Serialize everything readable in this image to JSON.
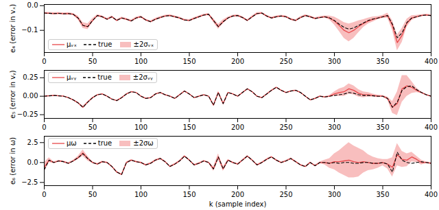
{
  "chart_data": [
    {
      "type": "line",
      "y_label": "e₄ (error in vₓ)",
      "legend": "lower left",
      "xlim": [
        0,
        400
      ],
      "xticks": [
        0,
        50,
        100,
        150,
        200,
        250,
        300,
        350,
        400
      ],
      "ylim": [
        -0.19,
        0.005
      ],
      "yticks": [
        {
          "value": 0,
          "label": "0.0"
        },
        {
          "value": -0.1,
          "label": "−0.1"
        }
      ],
      "x": [
        0,
        5,
        10,
        15,
        20,
        25,
        30,
        35,
        40,
        45,
        50,
        55,
        60,
        65,
        70,
        75,
        80,
        85,
        90,
        95,
        100,
        105,
        110,
        115,
        120,
        125,
        130,
        135,
        140,
        145,
        150,
        155,
        160,
        165,
        170,
        175,
        180,
        185,
        190,
        195,
        200,
        205,
        210,
        215,
        220,
        225,
        230,
        235,
        240,
        245,
        250,
        255,
        260,
        265,
        270,
        275,
        280,
        285,
        290,
        295,
        300,
        305,
        310,
        315,
        320,
        325,
        330,
        335,
        340,
        345,
        350,
        355,
        360,
        365,
        370,
        375,
        380,
        385,
        390,
        395,
        400
      ],
      "series": [
        {
          "name": "μᵥₓ",
          "color": "#e8474a",
          "line_style": "solid",
          "values": [
            -0.03,
            -0.031,
            -0.032,
            -0.031,
            -0.033,
            -0.032,
            -0.035,
            -0.05,
            -0.08,
            -0.085,
            -0.06,
            -0.04,
            -0.045,
            -0.055,
            -0.045,
            -0.06,
            -0.05,
            -0.055,
            -0.062,
            -0.05,
            -0.045,
            -0.058,
            -0.065,
            -0.055,
            -0.048,
            -0.042,
            -0.04,
            -0.045,
            -0.05,
            -0.058,
            -0.06,
            -0.052,
            -0.045,
            -0.038,
            -0.035,
            -0.06,
            -0.085,
            -0.065,
            -0.05,
            -0.042,
            -0.04,
            -0.048,
            -0.06,
            -0.045,
            -0.032,
            -0.03,
            -0.042,
            -0.05,
            -0.045,
            -0.042,
            -0.045,
            -0.055,
            -0.06,
            -0.048,
            -0.04,
            -0.045,
            -0.052,
            -0.048,
            -0.045,
            -0.05,
            -0.062,
            -0.08,
            -0.1,
            -0.11,
            -0.1,
            -0.085,
            -0.072,
            -0.062,
            -0.055,
            -0.05,
            -0.045,
            -0.04,
            -0.08,
            -0.15,
            -0.12,
            -0.07,
            -0.05,
            -0.045,
            -0.04,
            -0.038,
            -0.04
          ]
        },
        {
          "name": "true",
          "color": "#000000",
          "line_style": "dashed",
          "values": [
            -0.03,
            -0.031,
            -0.032,
            -0.031,
            -0.033,
            -0.032,
            -0.035,
            -0.05,
            -0.08,
            -0.085,
            -0.06,
            -0.04,
            -0.045,
            -0.055,
            -0.045,
            -0.06,
            -0.05,
            -0.055,
            -0.062,
            -0.05,
            -0.045,
            -0.058,
            -0.065,
            -0.055,
            -0.048,
            -0.042,
            -0.04,
            -0.045,
            -0.05,
            -0.058,
            -0.06,
            -0.052,
            -0.045,
            -0.038,
            -0.035,
            -0.06,
            -0.085,
            -0.065,
            -0.05,
            -0.042,
            -0.04,
            -0.048,
            -0.06,
            -0.045,
            -0.032,
            -0.03,
            -0.042,
            -0.05,
            -0.045,
            -0.042,
            -0.045,
            -0.055,
            -0.06,
            -0.048,
            -0.04,
            -0.045,
            -0.052,
            -0.048,
            -0.045,
            -0.05,
            -0.06,
            -0.075,
            -0.088,
            -0.095,
            -0.09,
            -0.08,
            -0.07,
            -0.06,
            -0.054,
            -0.05,
            -0.045,
            -0.04,
            -0.075,
            -0.13,
            -0.11,
            -0.068,
            -0.05,
            -0.045,
            -0.04,
            -0.038,
            -0.04
          ]
        }
      ],
      "band": {
        "name": "±2σᵥₓ",
        "color": "#f5a3a3",
        "sigma": [
          0.002,
          0.002,
          0.002,
          0.002,
          0.002,
          0.002,
          0.002,
          0.004,
          0.006,
          0.006,
          0.004,
          0.002,
          0.002,
          0.002,
          0.002,
          0.002,
          0.002,
          0.002,
          0.002,
          0.002,
          0.002,
          0.002,
          0.002,
          0.002,
          0.002,
          0.002,
          0.002,
          0.002,
          0.002,
          0.002,
          0.002,
          0.002,
          0.002,
          0.002,
          0.002,
          0.004,
          0.005,
          0.004,
          0.002,
          0.002,
          0.002,
          0.002,
          0.002,
          0.002,
          0.002,
          0.002,
          0.002,
          0.002,
          0.002,
          0.002,
          0.002,
          0.002,
          0.002,
          0.002,
          0.002,
          0.002,
          0.002,
          0.002,
          0.002,
          0.004,
          0.008,
          0.012,
          0.016,
          0.018,
          0.016,
          0.012,
          0.008,
          0.006,
          0.005,
          0.003,
          0.003,
          0.005,
          0.01,
          0.016,
          0.014,
          0.008,
          0.005,
          0.003,
          0.002,
          0.002,
          0.002
        ]
      }
    },
    {
      "type": "line",
      "y_label": "e₅ (error in vᵧ)",
      "legend": "upper left",
      "xlim": [
        0,
        400
      ],
      "xticks": [
        0,
        50,
        100,
        150,
        200,
        250,
        300,
        350,
        400
      ],
      "ylim": [
        -0.3,
        0.35
      ],
      "yticks": [
        0.25,
        {
          "value": 0,
          "label": "0.00"
        },
        {
          "value": -0.25,
          "label": "−0.25"
        }
      ],
      "x": [
        0,
        5,
        10,
        15,
        20,
        25,
        30,
        35,
        40,
        45,
        50,
        55,
        60,
        65,
        70,
        75,
        80,
        85,
        90,
        95,
        100,
        105,
        110,
        115,
        120,
        125,
        130,
        135,
        140,
        145,
        150,
        155,
        160,
        165,
        170,
        175,
        180,
        185,
        190,
        195,
        200,
        205,
        210,
        215,
        220,
        225,
        230,
        235,
        240,
        245,
        250,
        255,
        260,
        265,
        270,
        275,
        280,
        285,
        290,
        295,
        300,
        305,
        310,
        315,
        320,
        325,
        330,
        335,
        340,
        345,
        350,
        355,
        360,
        365,
        370,
        375,
        380,
        385,
        390,
        395,
        400
      ],
      "series": [
        {
          "name": "μᵥᵧ",
          "color": "#e8474a",
          "line_style": "solid",
          "values": [
            0.0,
            0.005,
            0.01,
            0.005,
            0.0,
            -0.02,
            -0.05,
            -0.09,
            -0.15,
            -0.08,
            -0.02,
            0.02,
            0.03,
            0.0,
            -0.04,
            -0.06,
            -0.02,
            0.03,
            0.06,
            0.05,
            0.0,
            -0.03,
            -0.02,
            0.03,
            0.05,
            0.02,
            0.0,
            -0.03,
            0.02,
            0.07,
            0.03,
            -0.02,
            0.0,
            0.02,
            0.0,
            -0.12,
            0.05,
            -0.1,
            0.05,
            0.03,
            0.0,
            0.05,
            0.1,
            0.06,
            0.0,
            -0.02,
            0.03,
            0.08,
            0.12,
            0.08,
            0.05,
            0.07,
            0.08,
            0.05,
            0.0,
            -0.05,
            -0.03,
            0.0,
            -0.01,
            0.0,
            0.03,
            0.05,
            0.06,
            0.1,
            0.08,
            0.04,
            0.02,
            0.02,
            0.01,
            0.0,
            0.0,
            -0.03,
            -0.15,
            -0.1,
            0.1,
            0.14,
            0.12,
            0.08,
            0.05,
            0.02,
            0.0
          ]
        },
        {
          "name": "true",
          "color": "#000000",
          "line_style": "dashed",
          "values": [
            0.0,
            0.005,
            0.01,
            0.005,
            0.0,
            -0.02,
            -0.05,
            -0.09,
            -0.15,
            -0.08,
            -0.02,
            0.02,
            0.03,
            0.0,
            -0.04,
            -0.06,
            -0.02,
            0.03,
            0.06,
            0.05,
            0.0,
            -0.03,
            -0.02,
            0.03,
            0.05,
            0.02,
            0.0,
            -0.03,
            0.02,
            0.07,
            0.03,
            -0.02,
            0.0,
            0.02,
            0.0,
            -0.12,
            0.05,
            -0.1,
            0.05,
            0.03,
            0.0,
            0.05,
            0.1,
            0.06,
            0.0,
            -0.02,
            0.03,
            0.08,
            0.12,
            0.08,
            0.05,
            0.07,
            0.08,
            0.05,
            0.0,
            -0.05,
            -0.03,
            0.0,
            -0.01,
            0.0,
            0.01,
            0.02,
            0.03,
            0.05,
            0.04,
            0.02,
            0.01,
            0.01,
            0.005,
            0.0,
            0.0,
            -0.03,
            -0.15,
            -0.08,
            0.08,
            0.13,
            0.14,
            0.09,
            0.05,
            0.02,
            0.0
          ]
        }
      ],
      "band": {
        "name": "±2σᵥᵧ",
        "color": "#f5a3a3",
        "sigma": [
          0.003,
          0.003,
          0.003,
          0.003,
          0.003,
          0.003,
          0.003,
          0.005,
          0.008,
          0.005,
          0.003,
          0.003,
          0.003,
          0.003,
          0.003,
          0.003,
          0.003,
          0.003,
          0.003,
          0.003,
          0.003,
          0.003,
          0.003,
          0.003,
          0.003,
          0.003,
          0.003,
          0.003,
          0.003,
          0.003,
          0.003,
          0.003,
          0.003,
          0.003,
          0.003,
          0.008,
          0.01,
          0.008,
          0.003,
          0.003,
          0.003,
          0.003,
          0.003,
          0.003,
          0.003,
          0.003,
          0.003,
          0.003,
          0.003,
          0.003,
          0.003,
          0.003,
          0.003,
          0.003,
          0.003,
          0.003,
          0.003,
          0.003,
          0.003,
          0.005,
          0.015,
          0.025,
          0.03,
          0.035,
          0.03,
          0.025,
          0.02,
          0.015,
          0.01,
          0.008,
          0.006,
          0.01,
          0.04,
          0.08,
          0.09,
          0.07,
          0.04,
          0.015,
          0.005,
          0.003,
          0.003
        ]
      }
    },
    {
      "type": "line",
      "y_label": "e₆ (error in ω)",
      "x_label": "k (sample index)",
      "legend": "upper left",
      "xlim": [
        0,
        400
      ],
      "xticks": [
        0,
        50,
        100,
        150,
        200,
        250,
        300,
        350,
        400
      ],
      "ylim": [
        -2.9,
        3.3
      ],
      "yticks": [
        2.5,
        {
          "value": 0,
          "label": "0.0"
        },
        {
          "value": -2.5,
          "label": "−2.5"
        }
      ],
      "x": [
        0,
        5,
        10,
        15,
        20,
        25,
        30,
        35,
        40,
        45,
        50,
        55,
        60,
        65,
        70,
        75,
        80,
        85,
        90,
        95,
        100,
        105,
        110,
        115,
        120,
        125,
        130,
        135,
        140,
        145,
        150,
        155,
        160,
        165,
        170,
        175,
        180,
        185,
        190,
        195,
        200,
        205,
        210,
        215,
        220,
        225,
        230,
        235,
        240,
        245,
        250,
        255,
        260,
        265,
        270,
        275,
        280,
        285,
        290,
        295,
        300,
        305,
        310,
        315,
        320,
        325,
        330,
        335,
        340,
        345,
        350,
        355,
        360,
        365,
        370,
        375,
        380,
        385,
        390,
        395,
        400
      ],
      "series": [
        {
          "name": "μω",
          "color": "#e8474a",
          "line_style": "solid",
          "values": [
            -0.6,
            0.3,
            0.0,
            0.2,
            0.1,
            -0.1,
            0.2,
            0.6,
            1.2,
            0.5,
            0.0,
            -0.2,
            0.1,
            0.0,
            -0.5,
            -1.2,
            -1.5,
            0.0,
            0.3,
            0.1,
            0.0,
            -0.3,
            -0.1,
            0.3,
            0.5,
            0.1,
            -0.5,
            -0.2,
            0.2,
            0.8,
            0.3,
            -0.3,
            -0.1,
            0.2,
            0.0,
            -0.8,
            0.7,
            -0.8,
            0.3,
            0.0,
            -0.2,
            0.3,
            0.8,
            0.3,
            -0.3,
            0.0,
            0.4,
            0.7,
            0.3,
            0.0,
            0.2,
            0.5,
            0.1,
            -0.3,
            -0.5,
            0.0,
            -0.4,
            0.0,
            0.0,
            -0.1,
            0.1,
            0.1,
            0.2,
            0.3,
            0.1,
            0.0,
            0.1,
            0.0,
            -0.1,
            -0.1,
            0.0,
            -0.2,
            -0.6,
            1.0,
            0.4,
            0.3,
            0.7,
            0.4,
            0.0,
            0.0,
            -0.1
          ]
        },
        {
          "name": "true",
          "color": "#000000",
          "line_style": "dashed",
          "values": [
            -0.9,
            0.3,
            0.0,
            0.2,
            0.1,
            -0.1,
            0.2,
            0.6,
            1.1,
            0.5,
            0.0,
            -0.2,
            0.1,
            0.0,
            -0.5,
            -1.2,
            -1.5,
            0.0,
            0.3,
            0.1,
            0.0,
            -0.3,
            -0.1,
            0.3,
            0.5,
            0.1,
            -0.5,
            -0.2,
            0.2,
            0.8,
            0.3,
            -0.3,
            -0.1,
            0.2,
            0.0,
            -0.8,
            0.7,
            -0.8,
            0.3,
            0.0,
            -0.2,
            0.3,
            0.8,
            0.3,
            -0.3,
            0.0,
            0.4,
            0.7,
            0.3,
            0.0,
            0.2,
            0.5,
            0.1,
            -0.3,
            -0.5,
            0.0,
            -0.4,
            0.0,
            0.0,
            -0.1,
            0.0,
            -0.1,
            0.0,
            0.0,
            -0.1,
            -0.1,
            0.0,
            0.0,
            -0.1,
            -0.1,
            0.0,
            -0.2,
            -1.2,
            1.3,
            0.3,
            0.0,
            -0.1,
            0.0,
            0.1,
            0.0,
            -0.1
          ]
        }
      ],
      "band": {
        "name": "±2σω",
        "color": "#f5a3a3",
        "sigma": [
          0.3,
          0.15,
          0.05,
          0.05,
          0.05,
          0.05,
          0.05,
          0.1,
          0.2,
          0.15,
          0.05,
          0.05,
          0.05,
          0.05,
          0.05,
          0.05,
          0.05,
          0.05,
          0.05,
          0.05,
          0.05,
          0.05,
          0.05,
          0.05,
          0.05,
          0.05,
          0.05,
          0.05,
          0.05,
          0.05,
          0.05,
          0.05,
          0.05,
          0.05,
          0.05,
          0.15,
          0.2,
          0.15,
          0.05,
          0.05,
          0.05,
          0.05,
          0.05,
          0.05,
          0.05,
          0.05,
          0.05,
          0.05,
          0.05,
          0.05,
          0.05,
          0.05,
          0.05,
          0.05,
          0.05,
          0.05,
          0.05,
          0.05,
          0.15,
          0.3,
          0.5,
          0.7,
          0.9,
          1.1,
          1.0,
          0.9,
          0.7,
          0.5,
          0.4,
          0.3,
          0.2,
          0.3,
          0.6,
          0.7,
          0.5,
          0.4,
          0.3,
          0.2,
          0.15,
          0.05,
          0.05
        ]
      }
    }
  ]
}
